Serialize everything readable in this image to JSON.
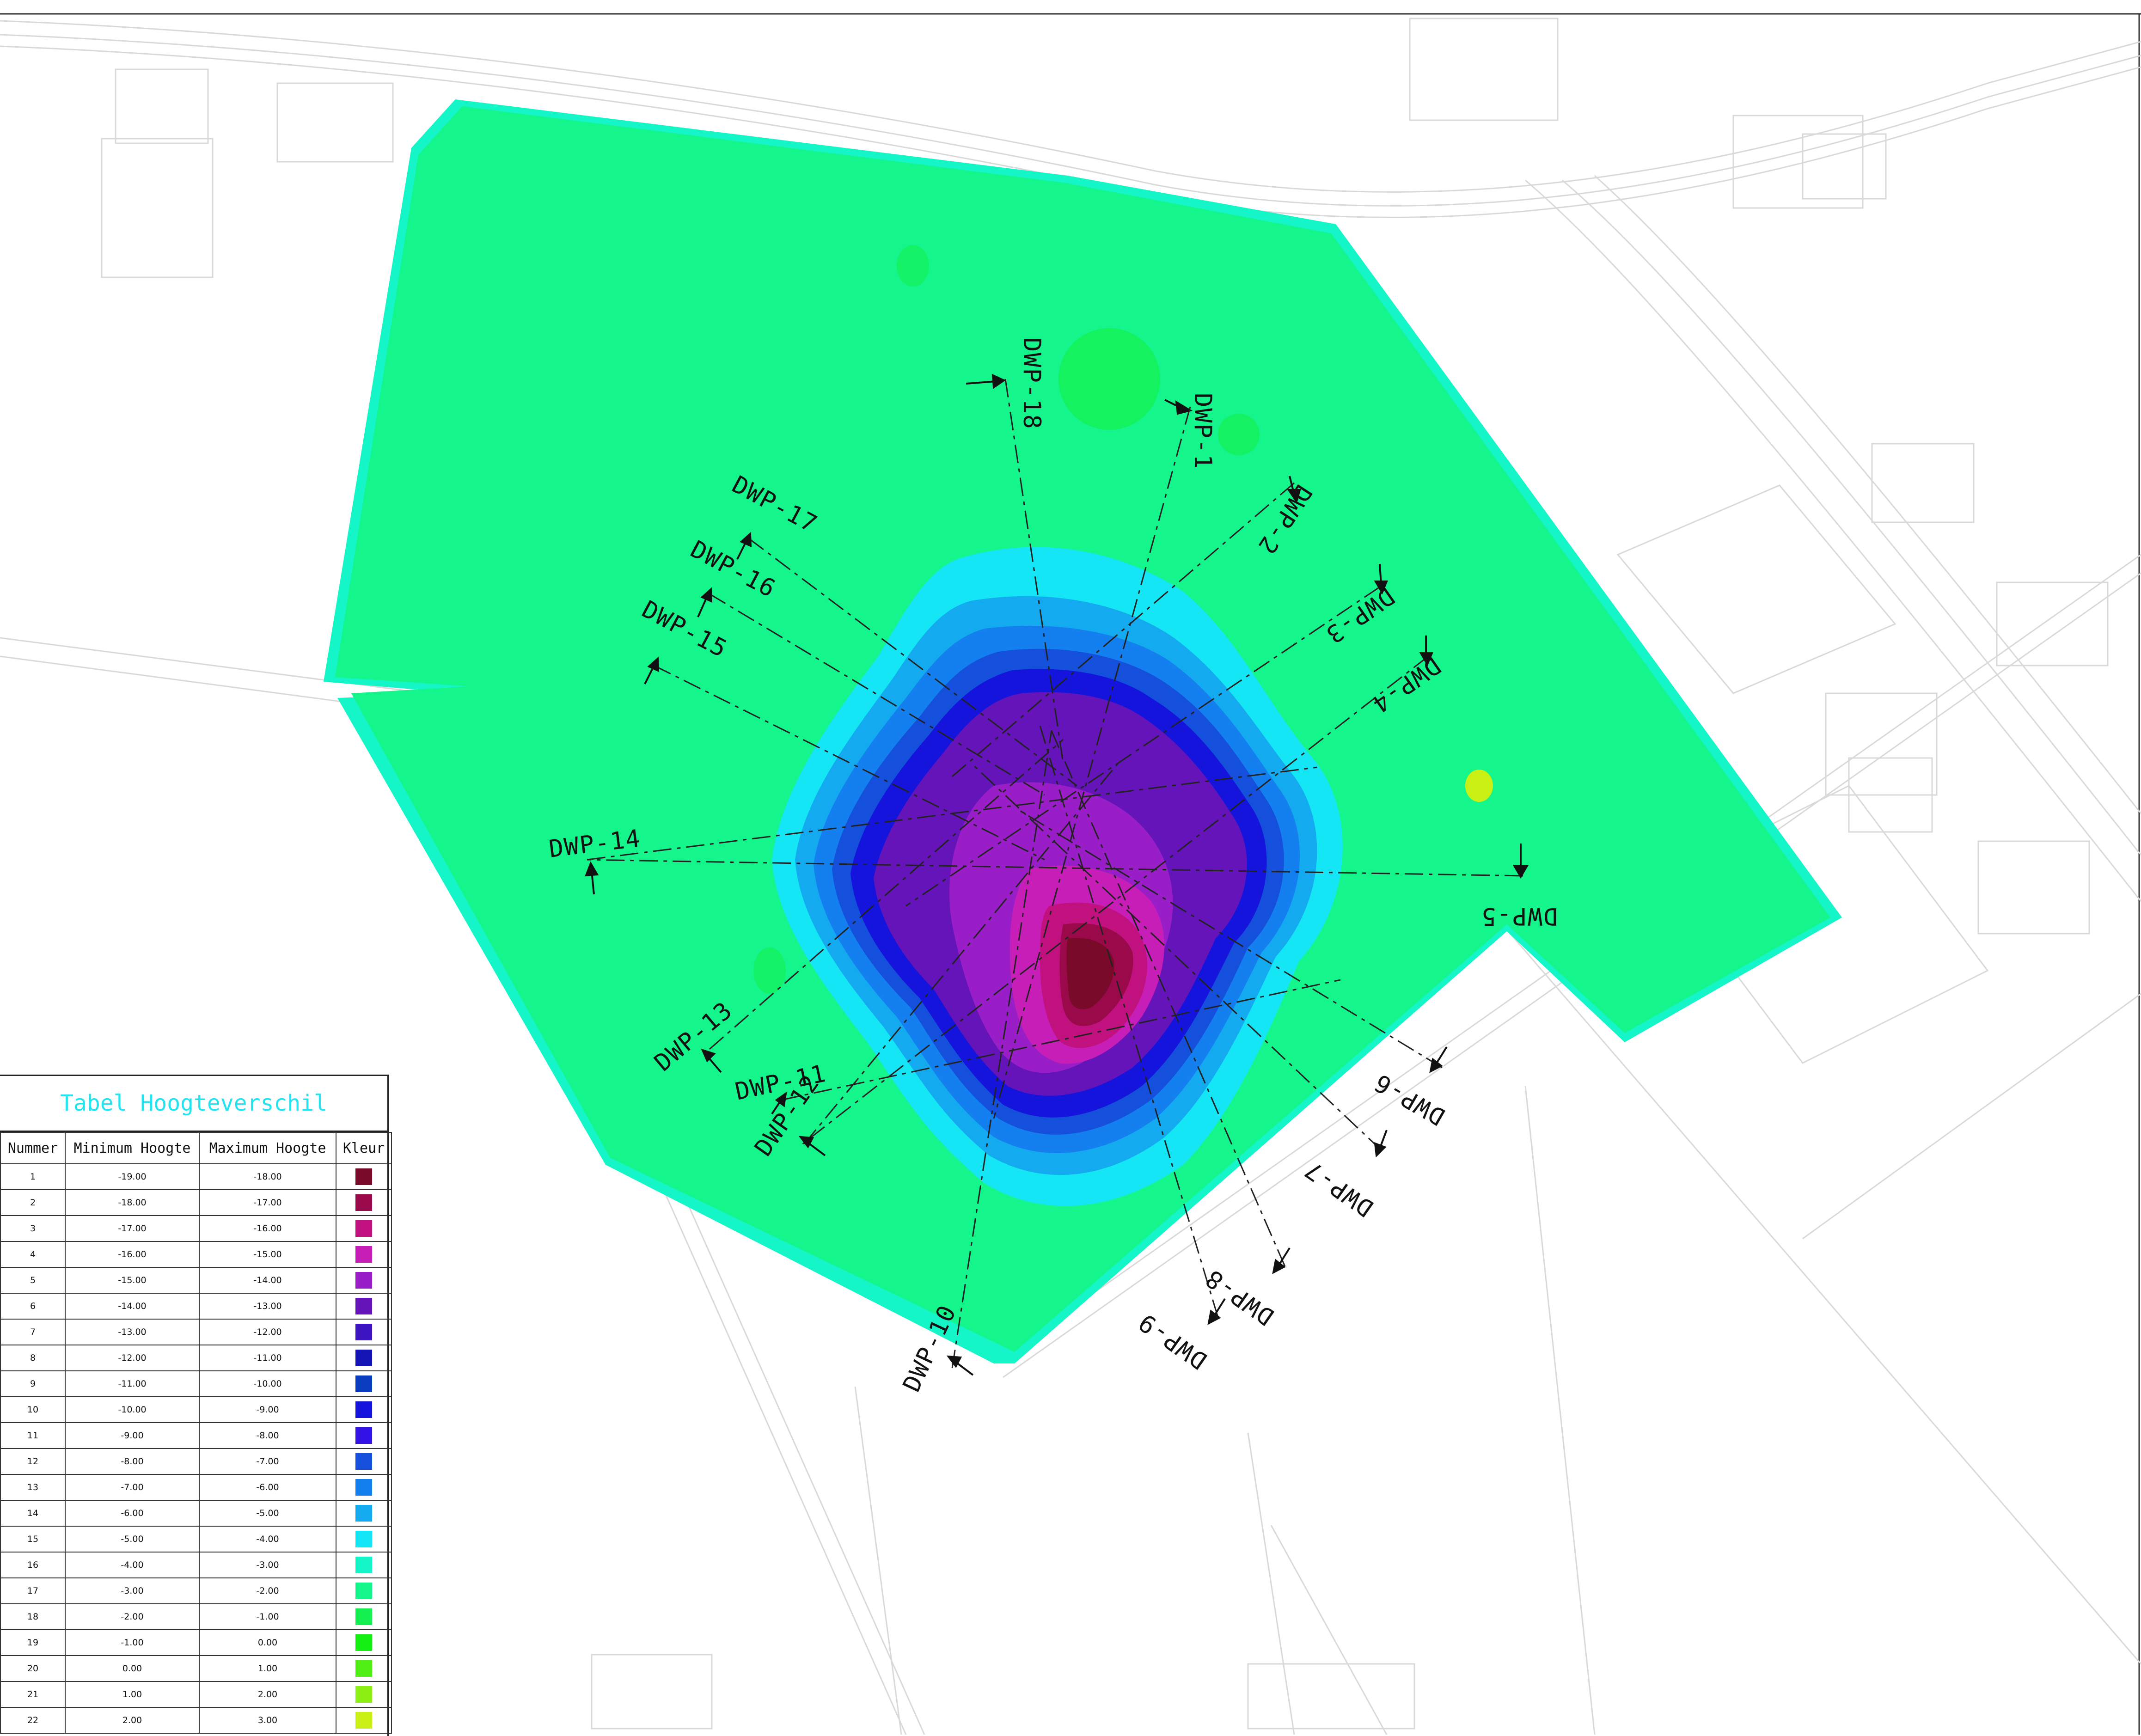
{
  "sections": [
    {
      "label": "DWP-1",
      "color": "#111111"
    },
    {
      "label": "DWP-2",
      "color": "#111111"
    },
    {
      "label": "DWP-3",
      "color": "#111111"
    },
    {
      "label": "DWP-4",
      "color": "#111111"
    },
    {
      "label": "DWP-5",
      "color": "#111111"
    },
    {
      "label": "DWP-6",
      "color": "#111111"
    },
    {
      "label": "DWP-7",
      "color": "#111111"
    },
    {
      "label": "DWP-8",
      "color": "#111111"
    },
    {
      "label": "DWP-9",
      "color": "#111111"
    },
    {
      "label": "DWP-10",
      "color": "#111111"
    },
    {
      "label": "DWP-11",
      "color": "#111111"
    },
    {
      "label": "DWP-12",
      "color": "#111111"
    },
    {
      "label": "DWP-13",
      "color": "#111111"
    },
    {
      "label": "DWP-14",
      "color": "#111111"
    },
    {
      "label": "DWP-15",
      "color": "#111111"
    },
    {
      "label": "DWP-16",
      "color": "#111111"
    },
    {
      "label": "DWP-17",
      "color": "#111111"
    },
    {
      "label": "DWP-18",
      "color": "#111111"
    }
  ],
  "legend": {
    "title": "Tabel Hoogteverschil",
    "title_color": "#22e3f0",
    "headers": [
      "Nummer",
      "Minimum Hoogte",
      "Maximum Hoogte",
      "Kleur"
    ],
    "rows": [
      {
        "num": "1",
        "min": "-19.00",
        "max": "-18.00",
        "color": "#7a0a2a"
      },
      {
        "num": "2",
        "min": "-18.00",
        "max": "-17.00",
        "color": "#9a0a4a"
      },
      {
        "num": "3",
        "min": "-17.00",
        "max": "-16.00",
        "color": "#c0117e"
      },
      {
        "num": "4",
        "min": "-16.00",
        "max": "-15.00",
        "color": "#c81eb8"
      },
      {
        "num": "5",
        "min": "-15.00",
        "max": "-14.00",
        "color": "#9a1ec8"
      },
      {
        "num": "6",
        "min": "-14.00",
        "max": "-13.00",
        "color": "#6414b8"
      },
      {
        "num": "7",
        "min": "-13.00",
        "max": "-12.00",
        "color": "#3c14c0"
      },
      {
        "num": "8",
        "min": "-12.00",
        "max": "-11.00",
        "color": "#1414b4"
      },
      {
        "num": "9",
        "min": "-11.00",
        "max": "-10.00",
        "color": "#0a3cc0"
      },
      {
        "num": "10",
        "min": "-10.00",
        "max": "-9.00",
        "color": "#1414dc"
      },
      {
        "num": "11",
        "min": "-9.00",
        "max": "-8.00",
        "color": "#3214e6"
      },
      {
        "num": "12",
        "min": "-8.00",
        "max": "-7.00",
        "color": "#1450dc"
      },
      {
        "num": "13",
        "min": "-7.00",
        "max": "-6.00",
        "color": "#1480f0"
      },
      {
        "num": "14",
        "min": "-6.00",
        "max": "-5.00",
        "color": "#14aaf0"
      },
      {
        "num": "15",
        "min": "-5.00",
        "max": "-4.00",
        "color": "#14e6f5"
      },
      {
        "num": "16",
        "min": "-4.00",
        "max": "-3.00",
        "color": "#14f5c8"
      },
      {
        "num": "17",
        "min": "-3.00",
        "max": "-2.00",
        "color": "#14f58c"
      },
      {
        "num": "18",
        "min": "-2.00",
        "max": "-1.00",
        "color": "#14f050"
      },
      {
        "num": "19",
        "min": "-1.00",
        "max": "0.00",
        "color": "#14f014"
      },
      {
        "num": "20",
        "min": "0.00",
        "max": "1.00",
        "color": "#50f014"
      },
      {
        "num": "21",
        "min": "1.00",
        "max": "2.00",
        "color": "#8cf014"
      },
      {
        "num": "22",
        "min": "2.00",
        "max": "3.00",
        "color": "#c8f014"
      }
    ]
  }
}
